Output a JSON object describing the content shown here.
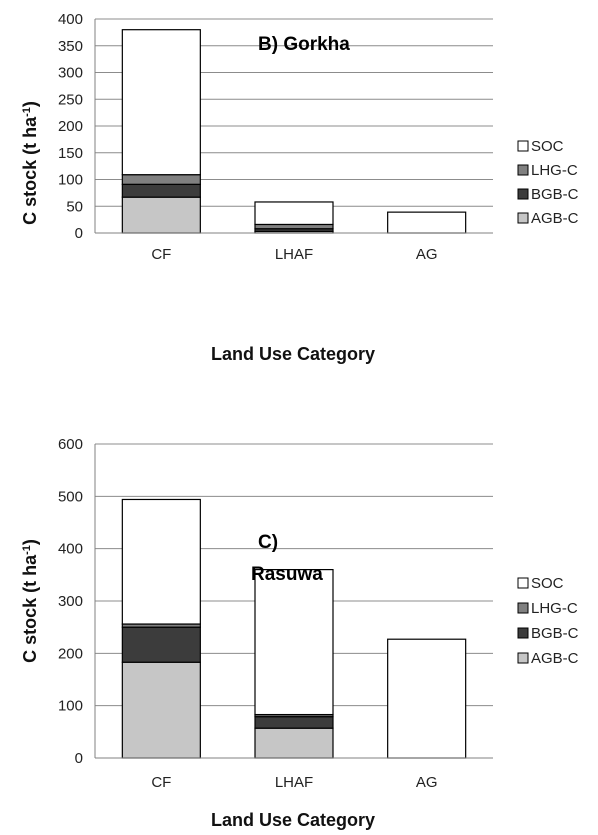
{
  "chart_data": [
    {
      "type": "bar",
      "stacked": true,
      "title": "B) Gorkha",
      "xlabel": "Land Use Category",
      "ylabel_main": "C stock (t ha",
      "ylabel_sup": "-1",
      "ylabel_tail": ")",
      "ylim": [
        0,
        400
      ],
      "yticks": [
        0,
        50,
        100,
        150,
        200,
        250,
        300,
        350,
        400
      ],
      "categories": [
        "CF",
        "LHAF",
        "AG"
      ],
      "series": [
        {
          "name": "AGB-C",
          "color": "#c6c6c6",
          "values": [
            67,
            3,
            0
          ]
        },
        {
          "name": "BGB-C",
          "color": "#3c3c3c",
          "values": [
            24,
            5,
            0
          ]
        },
        {
          "name": "LHG-C",
          "color": "#808080",
          "values": [
            18,
            8,
            0
          ]
        },
        {
          "name": "SOC",
          "color": "#ffffff",
          "values": [
            271,
            42,
            39
          ]
        }
      ],
      "legend": "right"
    },
    {
      "type": "bar",
      "stacked": true,
      "title_line1": "C)",
      "title_line2": "Rasuwa",
      "xlabel": "Land Use Category",
      "ylabel_main": "C stock (t ha",
      "ylabel_sup": "-1",
      "ylabel_tail": ")",
      "ylim": [
        0,
        600
      ],
      "yticks": [
        0,
        100,
        200,
        300,
        400,
        500,
        600
      ],
      "categories": [
        "CF",
        "LHAF",
        "AG"
      ],
      "series": [
        {
          "name": "AGB-C",
          "color": "#c6c6c6",
          "values": [
            183,
            57,
            0
          ]
        },
        {
          "name": "BGB-C",
          "color": "#3c3c3c",
          "values": [
            67,
            22,
            0
          ]
        },
        {
          "name": "LHG-C",
          "color": "#808080",
          "values": [
            6,
            4,
            0
          ]
        },
        {
          "name": "SOC",
          "color": "#ffffff",
          "values": [
            238,
            277,
            227
          ]
        }
      ],
      "legend": "right"
    }
  ]
}
